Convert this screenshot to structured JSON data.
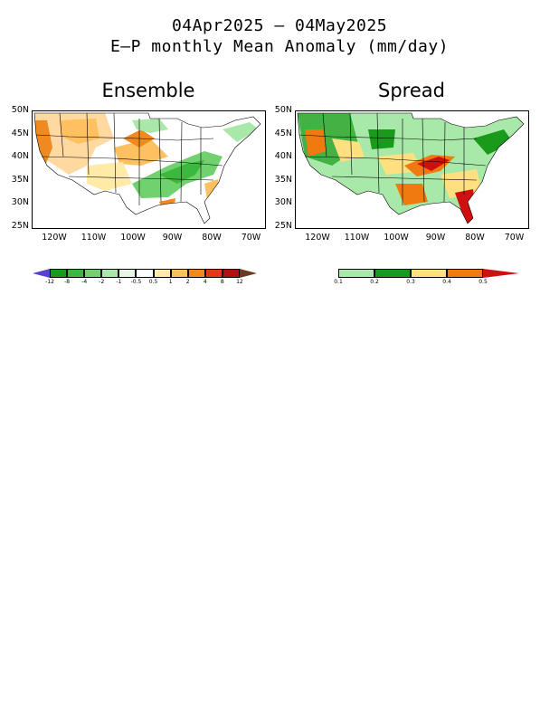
{
  "title_line1": "04Apr2025 – 04May2025",
  "title_line2": "E–P monthly Mean Anomaly (mm/day)",
  "panels": {
    "ensemble": {
      "title": "Ensemble"
    },
    "spread": {
      "title": "Spread"
    }
  },
  "axes": {
    "lat_labels": [
      "50N",
      "45N",
      "40N",
      "35N",
      "30N",
      "25N"
    ],
    "lon_labels": [
      "120W",
      "110W",
      "100W",
      "90W",
      "80W",
      "70W"
    ],
    "lat_range": [
      25,
      50
    ],
    "lon_range": [
      -125,
      -65
    ]
  },
  "ensemble_colorbar": {
    "labels": [
      "-12",
      "-8",
      "-4",
      "-2",
      "-1",
      "-0.5",
      "0.5",
      "1",
      "2",
      "4",
      "8",
      "12"
    ],
    "colors": [
      "#5a3fd6",
      "#1a9a1a",
      "#3cb83c",
      "#6fd26f",
      "#a9e8a9",
      "#e6f7e6",
      "#ffffff",
      "#ffeaa8",
      "#ffc060",
      "#f08a20",
      "#e53a10",
      "#b01010",
      "#6a3a20"
    ]
  },
  "spread_colorbar": {
    "labels": [
      "0.1",
      "0.2",
      "0.3",
      "0.4",
      "0.5"
    ],
    "colors": [
      "#ffffff",
      "#a8e8a8",
      "#1a9a1a",
      "#ffe080",
      "#f07a10",
      "#d01010"
    ]
  }
}
